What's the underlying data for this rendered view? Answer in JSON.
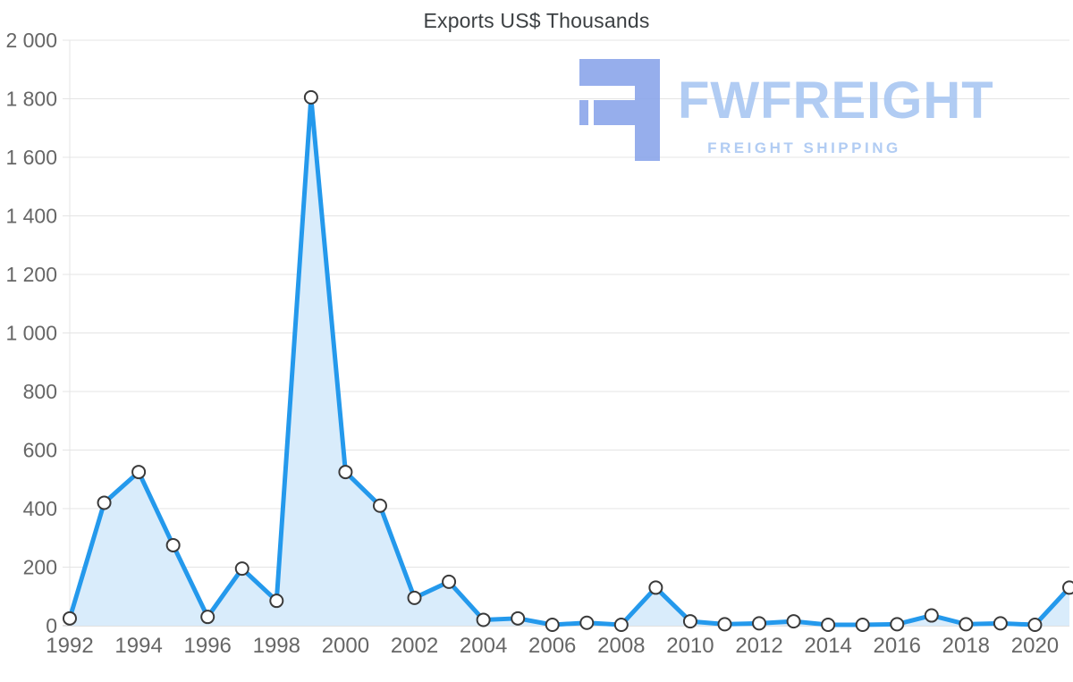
{
  "page": {
    "title": "Exports US$ Thousands"
  },
  "watermark": {
    "brand": "FWFREIGHT",
    "tagline": "FREIGHT SHIPPING",
    "glyph_color": "#8ba6ea",
    "text_color": "#a9c7f2"
  },
  "chart_data": {
    "type": "area",
    "title": "Exports US$ Thousands",
    "x": [
      1992,
      1993,
      1994,
      1995,
      1996,
      1997,
      1998,
      1999,
      2000,
      2001,
      2002,
      2003,
      2004,
      2005,
      2006,
      2007,
      2008,
      2009,
      2010,
      2011,
      2012,
      2013,
      2014,
      2015,
      2016,
      2017,
      2018,
      2019,
      2020,
      2021
    ],
    "series": [
      {
        "name": "Exports US$ Thousands",
        "values": [
          25,
          420,
          525,
          275,
          30,
          195,
          85,
          1805,
          525,
          410,
          95,
          150,
          20,
          25,
          3,
          10,
          3,
          130,
          15,
          5,
          8,
          15,
          3,
          3,
          5,
          35,
          5,
          8,
          3,
          130
        ]
      }
    ],
    "xlabel": "",
    "ylabel": "",
    "ylim": [
      0,
      2000
    ],
    "ytick_step": 200,
    "xtick_every": 2,
    "grid": true,
    "legend": "none",
    "line_color": "#2499ec",
    "area_color": "#d9ecfb",
    "grid_color": "#e4e4e4",
    "axis_color": "#c2c2c2",
    "tick_label_color": "#666666",
    "marker_fill": "#ffffff",
    "marker_stroke": "#3a3a3a"
  }
}
